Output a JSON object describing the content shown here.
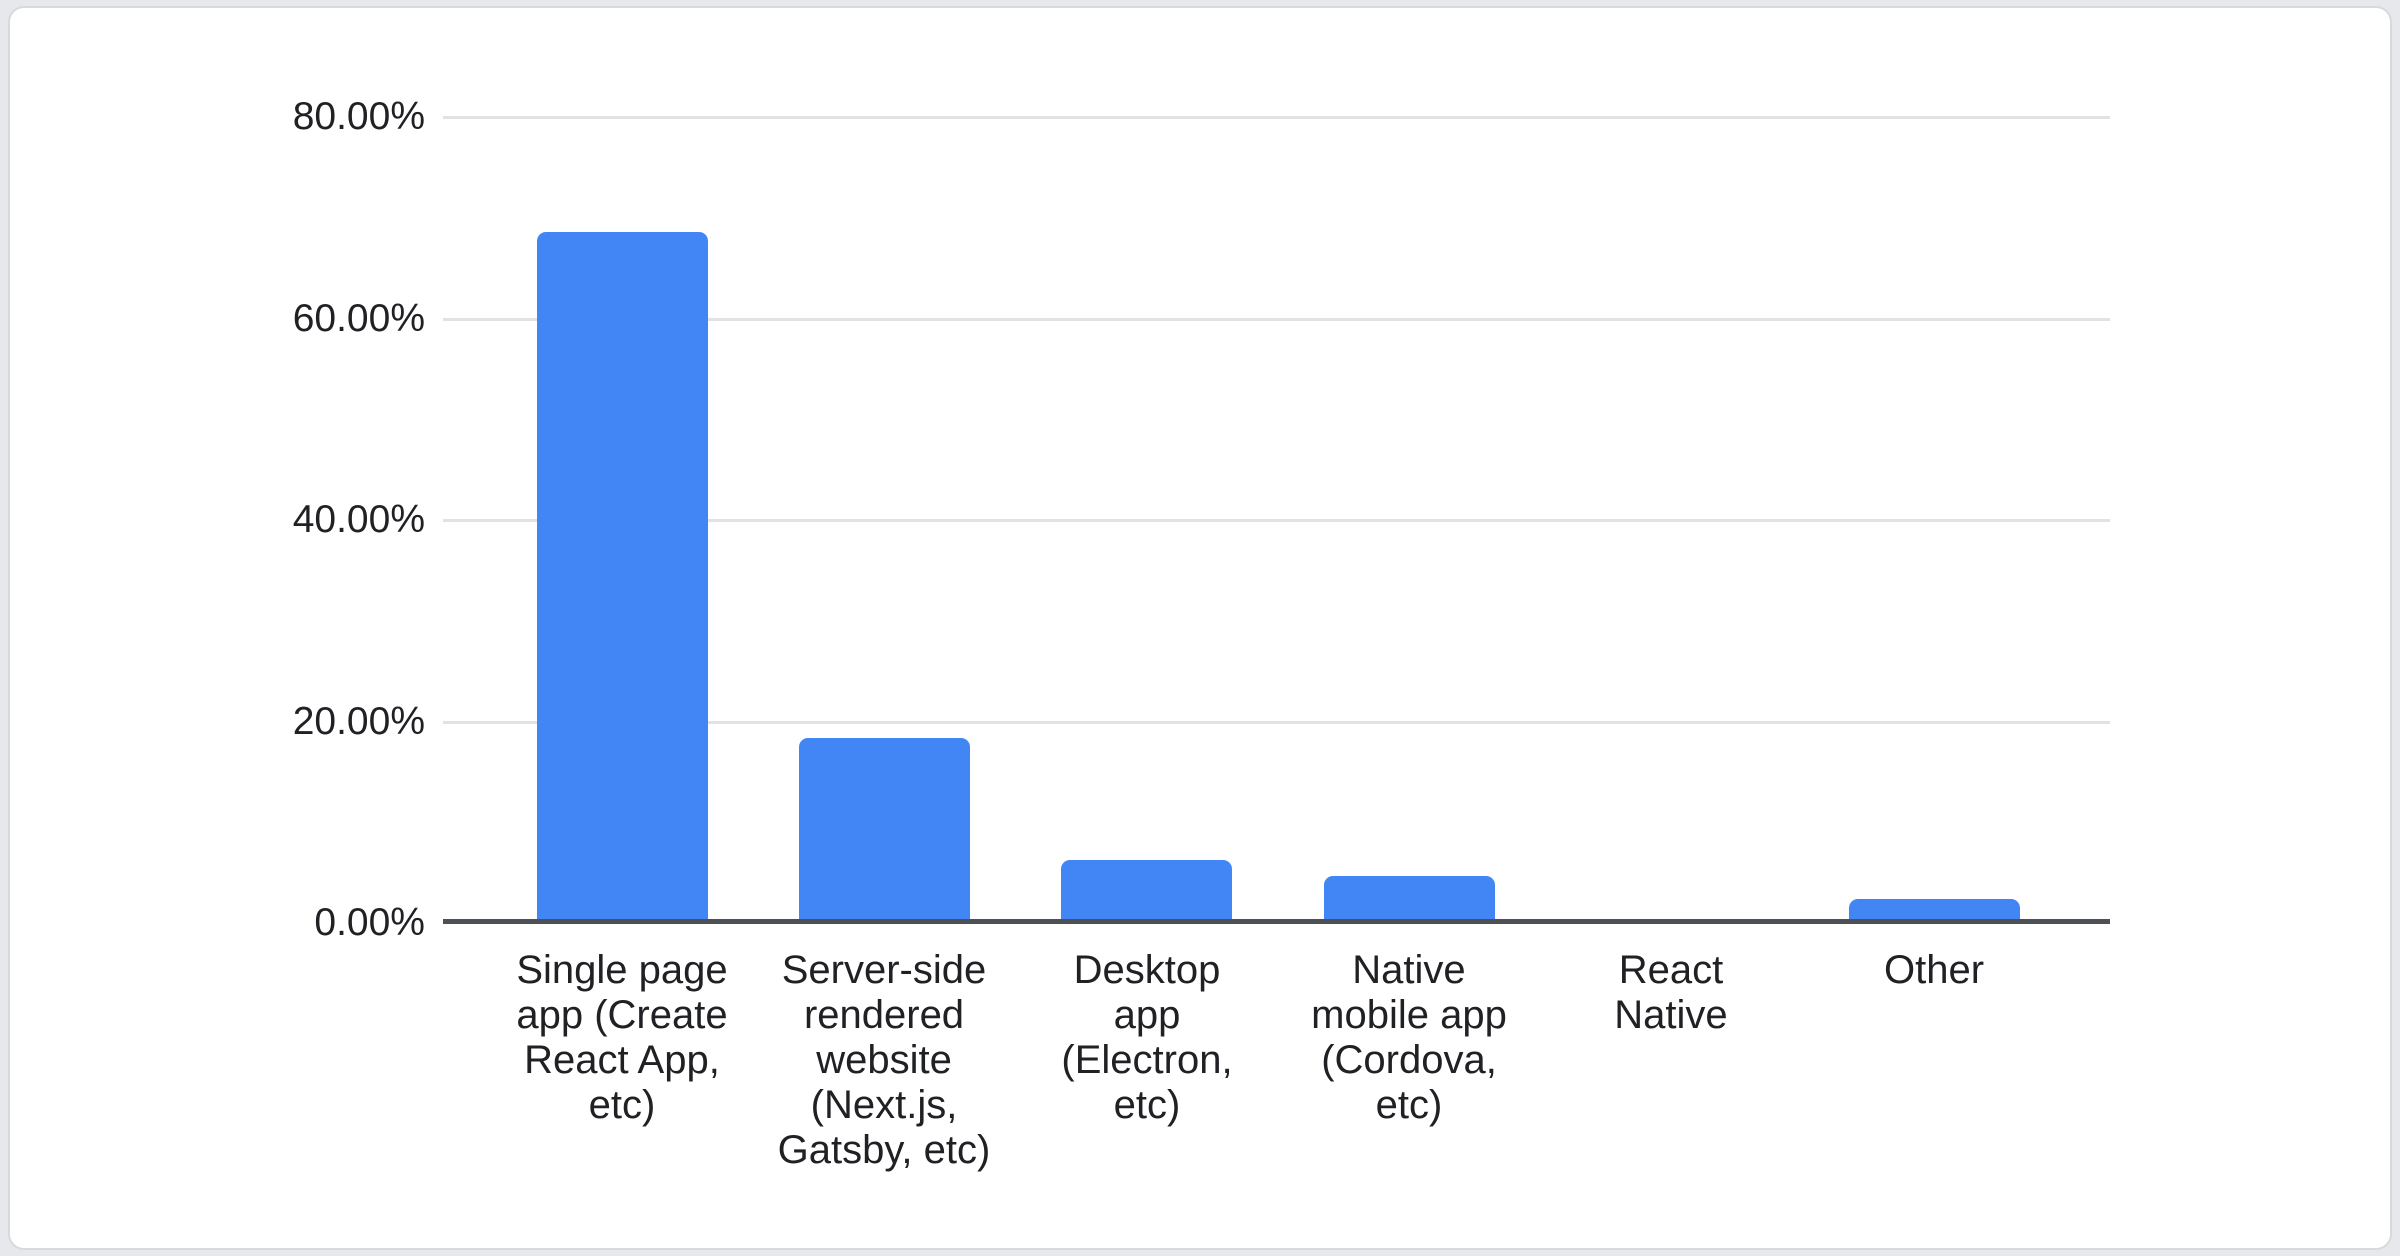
{
  "chart_data": {
    "type": "bar",
    "title": "",
    "categories": [
      "Single page app (Create React App, etc)",
      "Server-side rendered website (Next.js, Gatsby, etc)",
      "Desktop app (Electron, etc)",
      "Native mobile app (Cordova, etc)",
      "React Native",
      "Other"
    ],
    "category_display_lines": [
      [
        "Single page",
        "app (Create",
        "React App,",
        "etc)"
      ],
      [
        "Server-side",
        "rendered",
        "website",
        "(Next.js,",
        "Gatsby, etc)"
      ],
      [
        "Desktop",
        "app",
        "(Electron,",
        "etc)"
      ],
      [
        "Native",
        "mobile app",
        "(Cordova,",
        "etc)"
      ],
      [
        "React",
        "Native"
      ],
      [
        "Other"
      ]
    ],
    "values": [
      68.6,
      18.4,
      6.3,
      4.7,
      0,
      2.4
    ],
    "value_unit": "percent",
    "xlabel": "",
    "ylabel": "",
    "ylim": [
      0,
      80
    ],
    "ytick_values": [
      80,
      60,
      40,
      20,
      0
    ],
    "ytick_labels": [
      "80.00%",
      "60.00%",
      "40.00%",
      "20.00%",
      "0.00%"
    ],
    "grid": "horizontal-major",
    "legend": "none",
    "colors": {
      "bar": "#4285f4",
      "baseline_axis": "#4d5156",
      "gridline": "#e2e2e2",
      "label_text": "#202124",
      "card_background": "#ffffff",
      "card_border": "#d7dadd",
      "page_background": "#e6e8eb"
    }
  }
}
